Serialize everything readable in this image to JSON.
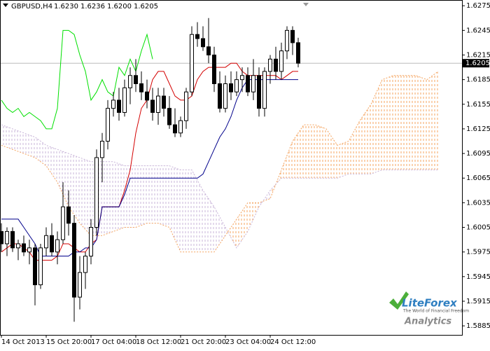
{
  "chart_data": {
    "type": "candlestick",
    "header": {
      "symbol": "GBPUSD,H4",
      "ohlc": [
        "1.6230",
        "1.6236",
        "1.6200",
        "1.6205"
      ]
    },
    "open": [
      1.6,
      1.5985,
      1.6,
      1.598,
      1.5985,
      1.5975,
      1.598,
      1.5935,
      1.598,
      1.5995,
      1.5975,
      1.599,
      1.603,
      1.601,
      1.592,
      1.595,
      1.597,
      1.6005,
      1.609,
      1.611,
      1.615,
      1.616,
      1.6145,
      1.6175,
      1.619,
      1.618,
      1.617,
      1.616,
      1.6145,
      1.6165,
      1.615,
      1.613,
      1.612,
      1.6135,
      1.617,
      1.624,
      1.6235,
      1.6225,
      1.6215,
      1.618,
      1.615,
      1.618,
      1.617,
      1.6185,
      1.619,
      1.617,
      1.619,
      1.615,
      1.6195,
      1.621,
      1.6195,
      1.622,
      1.6245,
      1.623
    ],
    "high": [
      1.601,
      1.6005,
      1.6005,
      1.599,
      1.5995,
      1.599,
      1.5985,
      1.5985,
      1.6005,
      1.601,
      1.6,
      1.606,
      1.605,
      1.602,
      1.597,
      1.5975,
      1.6015,
      1.61,
      1.612,
      1.616,
      1.617,
      1.6175,
      1.6185,
      1.62,
      1.621,
      1.6195,
      1.6185,
      1.6175,
      1.6175,
      1.6175,
      1.6165,
      1.615,
      1.614,
      1.6175,
      1.625,
      1.6255,
      1.625,
      1.626,
      1.6225,
      1.6195,
      1.619,
      1.6195,
      1.6195,
      1.62,
      1.62,
      1.621,
      1.62,
      1.62,
      1.6215,
      1.6225,
      1.623,
      1.625,
      1.625,
      1.6236
    ],
    "low": [
      1.5975,
      1.597,
      1.5975,
      1.5965,
      1.597,
      1.596,
      1.591,
      1.593,
      1.597,
      1.597,
      1.596,
      1.5985,
      1.5995,
      1.589,
      1.5905,
      1.593,
      1.596,
      1.5995,
      1.606,
      1.61,
      1.614,
      1.6135,
      1.614,
      1.6155,
      1.617,
      1.616,
      1.615,
      1.6135,
      1.613,
      1.614,
      1.6125,
      1.6115,
      1.6115,
      1.6125,
      1.6165,
      1.6225,
      1.622,
      1.6205,
      1.617,
      1.6145,
      1.6145,
      1.616,
      1.6165,
      1.617,
      1.6165,
      1.616,
      1.614,
      1.614,
      1.618,
      1.6185,
      1.6185,
      1.621,
      1.6215,
      1.62
    ],
    "close": [
      1.5985,
      1.6,
      1.598,
      1.5985,
      1.5975,
      1.598,
      1.5935,
      1.598,
      1.5995,
      1.5975,
      1.599,
      1.603,
      1.601,
      1.592,
      1.595,
      1.597,
      1.6005,
      1.609,
      1.611,
      1.615,
      1.616,
      1.6145,
      1.6175,
      1.619,
      1.618,
      1.617,
      1.616,
      1.6145,
      1.6165,
      1.615,
      1.613,
      1.612,
      1.6135,
      1.617,
      1.624,
      1.6235,
      1.6225,
      1.6215,
      1.618,
      1.615,
      1.618,
      1.617,
      1.6185,
      1.619,
      1.617,
      1.619,
      1.615,
      1.6195,
      1.621,
      1.6195,
      1.622,
      1.6245,
      1.623,
      1.6205
    ],
    "up_color": "#ffffff",
    "down_color": "#000000",
    "lines": [
      {
        "color": "#d40000",
        "values": [
          1.5975,
          1.598,
          1.5985,
          1.5985,
          1.598,
          1.5975,
          1.5965,
          1.5965,
          1.5965,
          1.5965,
          1.597,
          1.5985,
          1.5985,
          1.598,
          1.5975,
          1.5975,
          1.5985,
          1.599,
          1.603,
          1.603,
          1.603,
          1.603,
          1.605,
          1.6075,
          1.612,
          1.615,
          1.616,
          1.6185,
          1.6195,
          1.6195,
          1.618,
          1.6165,
          1.616,
          1.616,
          1.6165,
          1.6185,
          1.6195,
          1.62,
          1.62,
          1.62,
          1.62,
          1.6205,
          1.6205,
          1.6195,
          1.619,
          1.619,
          1.619,
          1.619,
          1.619,
          1.619,
          1.6185,
          1.619,
          1.6195,
          1.6195
        ]
      },
      {
        "color": "#00008b",
        "values": [
          1.6015,
          1.6015,
          1.6015,
          1.6015,
          1.6005,
          1.5995,
          1.5985,
          1.597,
          1.597,
          1.597,
          1.597,
          1.597,
          1.597,
          1.5975,
          1.5975,
          1.598,
          1.598,
          1.599,
          1.603,
          1.603,
          1.603,
          1.603,
          1.6045,
          1.6065,
          1.6065,
          1.6065,
          1.6065,
          1.6065,
          1.6065,
          1.6065,
          1.6065,
          1.6065,
          1.6065,
          1.6065,
          1.6065,
          1.6065,
          1.607,
          1.6085,
          1.61,
          1.6115,
          1.6125,
          1.614,
          1.616,
          1.6175,
          1.6185,
          1.6185,
          1.6185,
          1.6185,
          1.6185,
          1.6185,
          1.6185,
          1.6185,
          1.6185,
          1.6185
        ]
      },
      {
        "color": "#00e000",
        "values": [
          1.616,
          1.615,
          1.6145,
          1.615,
          1.614,
          1.6145,
          1.614,
          1.6135,
          1.6125,
          1.6125,
          1.615,
          1.6245,
          1.6245,
          1.624,
          1.6215,
          1.6195,
          1.616,
          1.617,
          1.6185,
          1.617,
          1.6165,
          1.62,
          1.619,
          1.621,
          1.6195,
          1.622,
          1.624,
          1.621
        ]
      }
    ],
    "cloud": {
      "x": [
        0,
        2,
        4,
        6,
        8,
        10,
        12,
        14,
        16,
        18,
        20,
        22,
        24,
        26,
        28,
        30,
        32,
        34,
        36,
        38,
        40,
        42,
        44,
        46,
        48,
        50,
        52,
        54,
        56,
        58,
        60,
        62,
        64,
        66,
        68,
        70,
        72,
        74,
        76,
        78
      ],
      "span_a": {
        "color": "#f4a460",
        "values": [
          1.6105,
          1.61,
          1.6095,
          1.609,
          1.608,
          1.606,
          1.603,
          1.601,
          1.5995,
          1.5995,
          1.6,
          1.6005,
          1.6005,
          1.601,
          1.601,
          1.6005,
          1.5975,
          1.5975,
          1.5975,
          1.5975,
          1.5995,
          1.6015,
          1.6035,
          1.6035,
          1.604,
          1.6075,
          1.611,
          1.613,
          1.613,
          1.6125,
          1.6105,
          1.611,
          1.6135,
          1.6155,
          1.6185,
          1.619,
          1.619,
          1.619,
          1.6185,
          1.6195
        ]
      },
      "span_b": {
        "color": "#c8b4d8",
        "values": [
          1.613,
          1.6125,
          1.612,
          1.6115,
          1.6105,
          1.61,
          1.6095,
          1.609,
          1.6085,
          1.6085,
          1.6085,
          1.608,
          1.608,
          1.608,
          1.608,
          1.608,
          1.6075,
          1.6075,
          1.605,
          1.603,
          1.6005,
          1.598,
          1.6,
          1.603,
          1.605,
          1.6065,
          1.6065,
          1.6065,
          1.6065,
          1.6065,
          1.6065,
          1.607,
          1.607,
          1.607,
          1.6075,
          1.6075,
          1.6075,
          1.6075,
          1.6075,
          1.6075
        ]
      }
    },
    "last_price": {
      "value": 1.6205,
      "label": "1.6205"
    },
    "xlim": [
      -0.25,
      82.25
    ],
    "xticks": [
      {
        "value": 0,
        "label": "14 Oct 2013"
      },
      {
        "value": 8,
        "label": "15 Oct 20:00"
      },
      {
        "value": 16,
        "label": "17 Oct 04:00"
      },
      {
        "value": 24,
        "label": "18 Oct 12:00"
      },
      {
        "value": 32,
        "label": "21 Oct 20:00"
      },
      {
        "value": 40,
        "label": "23 Oct 04:00"
      },
      {
        "value": 48,
        "label": "24 Oct 12:00"
      }
    ],
    "ylim": [
      1.5874,
      1.6282
    ],
    "yticks": [
      1.5885,
      1.5915,
      1.5945,
      1.5975,
      1.6005,
      1.6035,
      1.6065,
      1.6095,
      1.6125,
      1.6155,
      1.6185,
      1.6215,
      1.6245,
      1.6275
    ],
    "logo": {
      "brand": "LiteForex",
      "tagline": "The World of Financial Freedom",
      "product": "Analytics"
    }
  }
}
